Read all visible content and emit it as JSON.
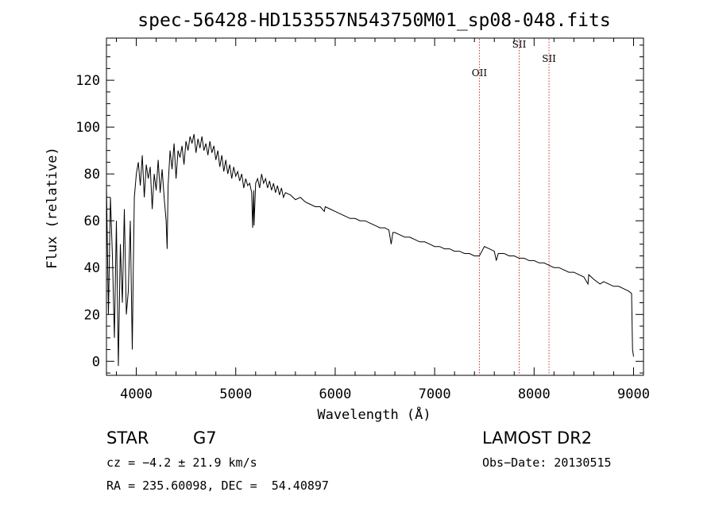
{
  "chart_data": {
    "type": "line",
    "title": "spec-56428-HD153557N543750M01_sp08-048.fits",
    "xlabel": "Wavelength (Å)",
    "ylabel": "Flux (relative)",
    "xlim": [
      3700,
      9100
    ],
    "ylim": [
      -6,
      138
    ],
    "x_ticks": [
      4000,
      5000,
      6000,
      7000,
      8000,
      9000
    ],
    "y_ticks": [
      0,
      20,
      40,
      60,
      80,
      100,
      120
    ],
    "grid": false,
    "series": [
      {
        "color": "#000000",
        "x": [
          3700,
          3720,
          3740,
          3760,
          3780,
          3800,
          3820,
          3840,
          3860,
          3880,
          3900,
          3920,
          3940,
          3960,
          3970,
          3980,
          4000,
          4020,
          4040,
          4060,
          4080,
          4100,
          4120,
          4140,
          4160,
          4180,
          4200,
          4220,
          4240,
          4260,
          4280,
          4300,
          4310,
          4320,
          4340,
          4360,
          4380,
          4400,
          4420,
          4440,
          4460,
          4480,
          4500,
          4520,
          4540,
          4560,
          4580,
          4600,
          4620,
          4640,
          4660,
          4680,
          4700,
          4720,
          4740,
          4760,
          4780,
          4800,
          4820,
          4840,
          4860,
          4880,
          4900,
          4920,
          4940,
          4960,
          4980,
          5000,
          5020,
          5040,
          5060,
          5080,
          5100,
          5120,
          5140,
          5160,
          5170,
          5180,
          5184,
          5200,
          5220,
          5240,
          5260,
          5280,
          5300,
          5320,
          5340,
          5360,
          5380,
          5400,
          5420,
          5440,
          5460,
          5480,
          5500,
          5550,
          5600,
          5650,
          5700,
          5750,
          5800,
          5850,
          5890,
          5900,
          5950,
          6000,
          6050,
          6100,
          6150,
          6200,
          6250,
          6300,
          6350,
          6400,
          6450,
          6500,
          6540,
          6563,
          6580,
          6600,
          6650,
          6700,
          6750,
          6800,
          6850,
          6900,
          6950,
          7000,
          7050,
          7100,
          7150,
          7200,
          7250,
          7300,
          7350,
          7400,
          7450,
          7500,
          7550,
          7600,
          7620,
          7640,
          7700,
          7750,
          7800,
          7850,
          7900,
          7950,
          8000,
          8050,
          8100,
          8150,
          8200,
          8250,
          8300,
          8350,
          8400,
          8450,
          8500,
          8542,
          8550,
          8600,
          8662,
          8700,
          8750,
          8800,
          8850,
          8900,
          8950,
          8980,
          8990,
          9000
        ],
        "y": [
          75,
          20,
          70,
          45,
          10,
          60,
          -2,
          50,
          25,
          65,
          20,
          30,
          60,
          5,
          40,
          70,
          80,
          85,
          75,
          88,
          70,
          84,
          78,
          83,
          65,
          80,
          73,
          86,
          72,
          82,
          70,
          60,
          48,
          75,
          90,
          82,
          93,
          78,
          90,
          87,
          92,
          84,
          94,
          90,
          96,
          93,
          97,
          89,
          95,
          91,
          96,
          90,
          93,
          88,
          94,
          89,
          92,
          86,
          90,
          83,
          88,
          81,
          86,
          80,
          84,
          78,
          83,
          79,
          81,
          77,
          80,
          74,
          78,
          75,
          76,
          72,
          57,
          73,
          58,
          76,
          78,
          74,
          80,
          76,
          78,
          74,
          77,
          73,
          76,
          72,
          75,
          71,
          74,
          70,
          72,
          71,
          69,
          70,
          68,
          67,
          66,
          66,
          64,
          66,
          65,
          64,
          63,
          62,
          61,
          61,
          60,
          60,
          59,
          58,
          57,
          57,
          56,
          50,
          55,
          55,
          54,
          53,
          53,
          52,
          51,
          51,
          50,
          49,
          49,
          48,
          48,
          47,
          47,
          46,
          46,
          45,
          45,
          49,
          48,
          47,
          43,
          46,
          46,
          45,
          45,
          44,
          44,
          43,
          43,
          42,
          42,
          41,
          40,
          40,
          39,
          38,
          38,
          37,
          36,
          33,
          37,
          35,
          33,
          34,
          33,
          32,
          32,
          31,
          30,
          29,
          5,
          2
        ]
      }
    ],
    "annotations": [
      {
        "label": "OII",
        "x": 7450,
        "line_color": "#cc3333"
      },
      {
        "label": "SII",
        "x": 7850,
        "line_color": "#cc3333"
      },
      {
        "label": "SII",
        "x": 8150,
        "line_color": "#cc3333"
      }
    ]
  },
  "info": {
    "object_class": "STAR",
    "subclass": "G7",
    "survey": "LAMOST DR2",
    "cz": "cz = −4.2 ± 21.9 km/s",
    "obs_date": "Obs−Date: 20130515",
    "coords": "RA = 235.60098, DEC =  54.40897"
  }
}
